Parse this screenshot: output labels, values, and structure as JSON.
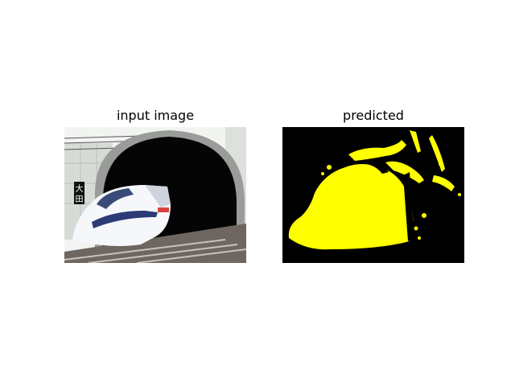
{
  "figure": {
    "left_panel": {
      "title": "input image"
    },
    "right_panel": {
      "title": "predicted"
    }
  },
  "scene": {
    "sign_glyphs": [
      "大",
      "田"
    ],
    "mask_color": "#ffff00",
    "background_color": "#000000"
  }
}
